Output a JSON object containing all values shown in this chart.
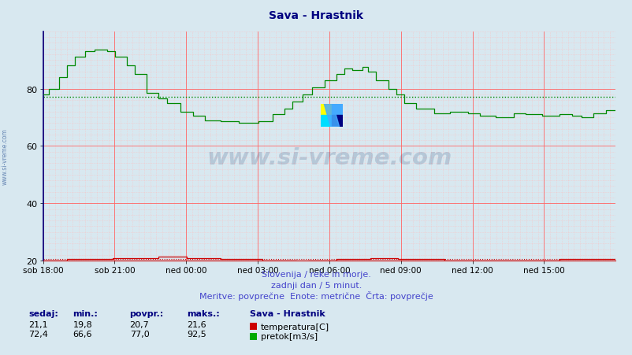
{
  "title": "Sava - Hrastnik",
  "title_color": "#000080",
  "bg_color": "#d8e8f0",
  "plot_bg_color": "#d8e8f0",
  "grid_color_major": "#ff6666",
  "grid_color_minor": "#ffbbbb",
  "xlabel_ticks": [
    "sob 18:00",
    "sob 21:00",
    "ned 00:00",
    "ned 03:00",
    "ned 06:00",
    "ned 09:00",
    "ned 12:00",
    "ned 15:00"
  ],
  "ylabel_ticks": [
    20,
    40,
    60,
    80
  ],
  "ylabel_min": 20,
  "ylabel_max": 100,
  "footer_line1": "Slovenija / reke in morje.",
  "footer_line2": "zadnji dan / 5 minut.",
  "footer_line3": "Meritve: povprečne  Enote: metrične  Črta: povprečje",
  "footer_color": "#4444cc",
  "watermark_text": "www.si-vreme.com",
  "watermark_color": "#1a3a6e",
  "watermark_alpha": 0.18,
  "legend_title": "Sava - Hrastnik",
  "legend_items": [
    {
      "label": "temperatura[C]",
      "color": "#cc0000"
    },
    {
      "label": "pretok[m3/s]",
      "color": "#00aa00"
    }
  ],
  "stats_headers": [
    "sedaj:",
    "min.:",
    "povpr.:",
    "maks.:"
  ],
  "stats_temp": [
    "21,1",
    "19,8",
    "20,7",
    "21,6"
  ],
  "stats_flow": [
    "72,4",
    "66,6",
    "77,0",
    "92,5"
  ],
  "avg_flow_line": 77.0,
  "avg_temp_line": 20.7,
  "temp_color": "#cc0000",
  "flow_color": "#008800",
  "left_spine_color": "#000080",
  "bottom_spine_color": "#cc0000",
  "sidebar_text": "www.si-vreme.com",
  "sidebar_color": "#5577aa",
  "n_points": 288,
  "logo_colors": {
    "top_left": "#ffff00",
    "top_right": "#44aaff",
    "bottom_left": "#00ddff",
    "bottom_right": "#000080",
    "diagonal": "#44aaff"
  }
}
